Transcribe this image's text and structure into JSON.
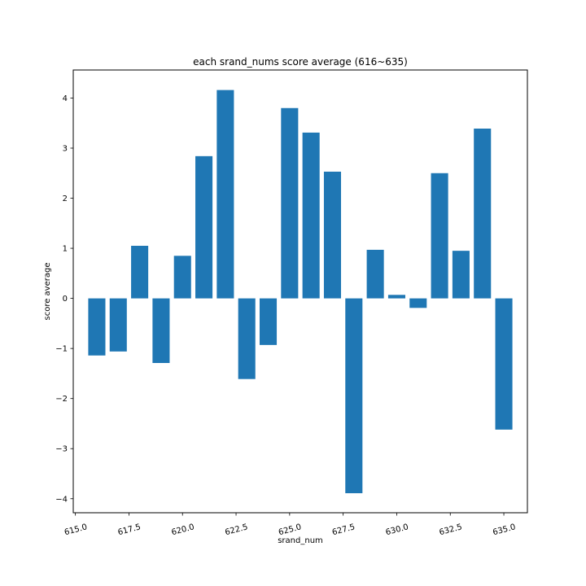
{
  "chart_data": {
    "type": "bar",
    "title": "each srand_nums score average (616~635)",
    "xlabel": "srand_num",
    "ylabel": "score average",
    "x": [
      616,
      617,
      618,
      619,
      620,
      621,
      622,
      623,
      624,
      625,
      626,
      627,
      628,
      629,
      630,
      631,
      632,
      633,
      634,
      635
    ],
    "values": [
      -1.14,
      -1.06,
      1.05,
      -1.29,
      0.85,
      2.84,
      4.16,
      -1.61,
      -0.93,
      3.8,
      3.31,
      2.53,
      -3.89,
      0.97,
      0.07,
      -0.19,
      2.5,
      0.95,
      3.39,
      -2.62
    ],
    "xlim": [
      614.9,
      636.1
    ],
    "ylim": [
      -4.28,
      4.56
    ],
    "xticks": [
      615.0,
      617.5,
      620.0,
      622.5,
      625.0,
      627.5,
      630.0,
      632.5,
      635.0
    ],
    "xtick_labels": [
      "615.0",
      "617.5",
      "620.0",
      "622.5",
      "625.0",
      "627.5",
      "630.0",
      "632.5",
      "635.0"
    ],
    "yticks": [
      -4,
      -3,
      -2,
      -1,
      0,
      1,
      2,
      3,
      4
    ],
    "ytick_labels": [
      "−4",
      "−3",
      "−2",
      "−1",
      "0",
      "1",
      "2",
      "3",
      "4"
    ],
    "bar_color": "#1f77b4",
    "grid": false,
    "legend": false
  }
}
